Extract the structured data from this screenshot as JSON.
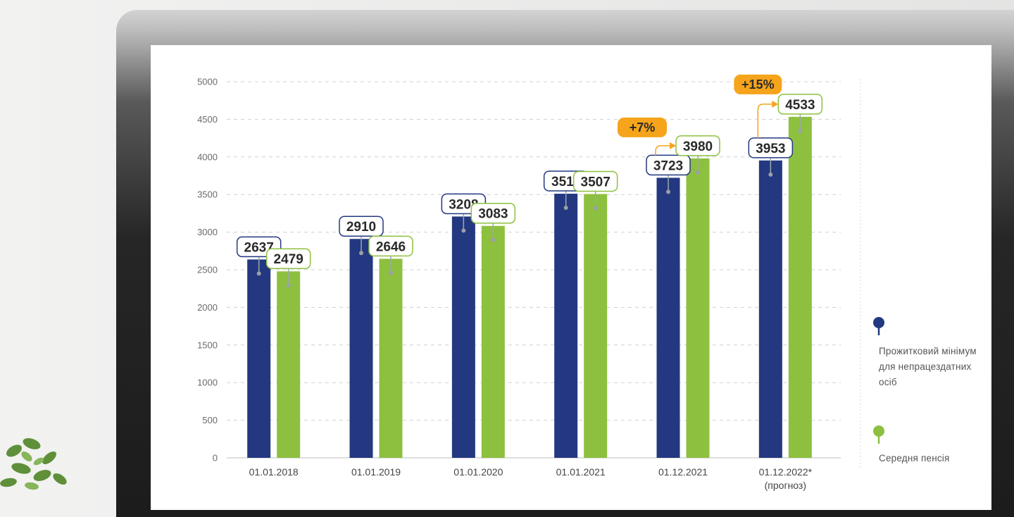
{
  "colors": {
    "series1": "#233880",
    "series2": "#8dc03f",
    "highlight": "#f5a41b",
    "axis_text": "#6a6a6a",
    "grid": "#d0d0d0"
  },
  "chart_data": {
    "type": "bar",
    "categories": [
      "01.01.2018",
      "01.01.2019",
      "01.01.2020",
      "01.01.2021",
      "01.12.2021",
      "01.12.2022*"
    ],
    "category_notes": [
      "",
      "",
      "",
      "",
      "",
      "(прогноз)"
    ],
    "series": [
      {
        "name": "Прожитковий мінімум для непрацездатних осіб",
        "color": "#233880",
        "values": [
          2637,
          2910,
          3208,
          3511,
          3723,
          3953
        ]
      },
      {
        "name": "Середня пенсія",
        "color": "#8dc03f",
        "values": [
          2479,
          2646,
          3083,
          3507,
          3980,
          4533
        ]
      }
    ],
    "ylim": [
      0,
      5000
    ],
    "yticks": [
      0,
      500,
      1000,
      1500,
      2000,
      2500,
      3000,
      3500,
      4000,
      4500,
      5000
    ],
    "grid": true,
    "legend_position": "right",
    "annotations": [
      {
        "text": "+7%",
        "category_index": 4
      },
      {
        "text": "+15%",
        "category_index": 5
      }
    ]
  }
}
